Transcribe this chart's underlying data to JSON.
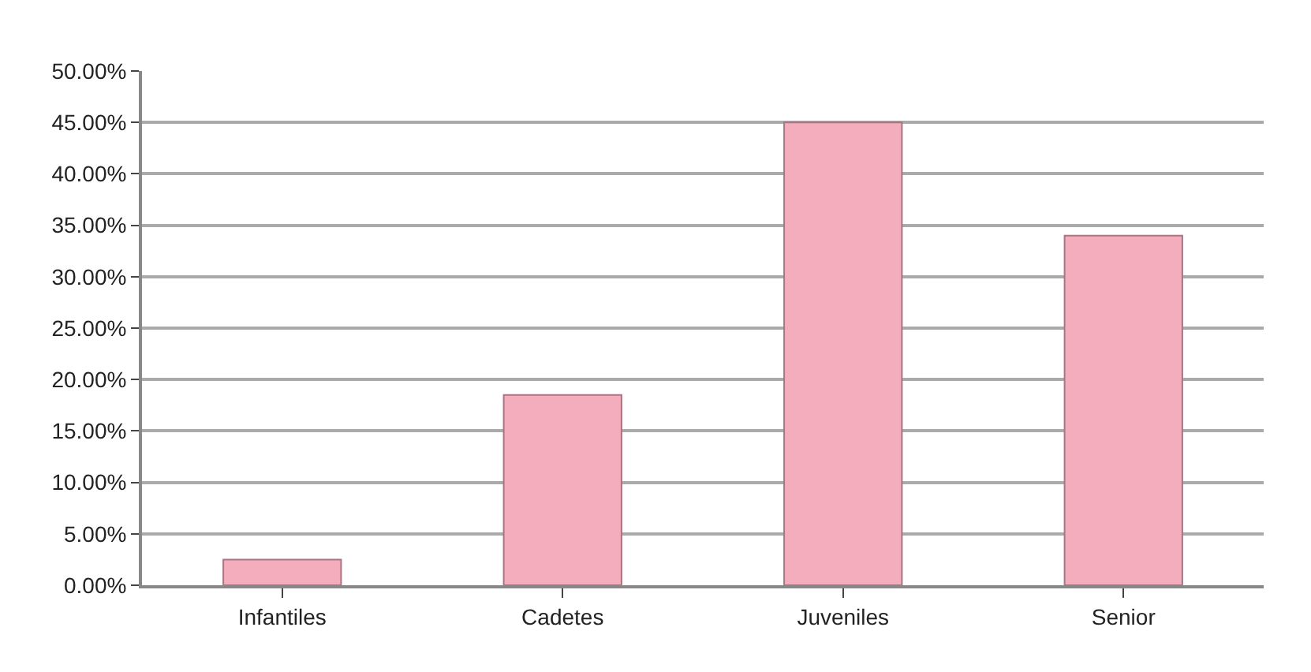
{
  "chart_data": {
    "type": "bar",
    "categories": [
      "Infantiles",
      "Cadetes",
      "Juveniles",
      "Senior"
    ],
    "values": [
      2.5,
      18.5,
      45,
      34
    ],
    "color": "#f4adbd",
    "ylim": [
      0,
      50
    ],
    "yticks": [
      {
        "value": 0,
        "label": "0.00%"
      },
      {
        "value": 5,
        "label": "5.00%"
      },
      {
        "value": 10,
        "label": "10.00%"
      },
      {
        "value": 15,
        "label": "15.00%"
      },
      {
        "value": 20,
        "label": "20.00%"
      },
      {
        "value": 25,
        "label": "25.00%"
      },
      {
        "value": 30,
        "label": "30.00%"
      },
      {
        "value": 35,
        "label": "35.00%"
      },
      {
        "value": 40,
        "label": "40.00%"
      },
      {
        "value": 45,
        "label": "45.00%"
      },
      {
        "value": 50,
        "label": "50.00%"
      }
    ],
    "grid": "y"
  }
}
